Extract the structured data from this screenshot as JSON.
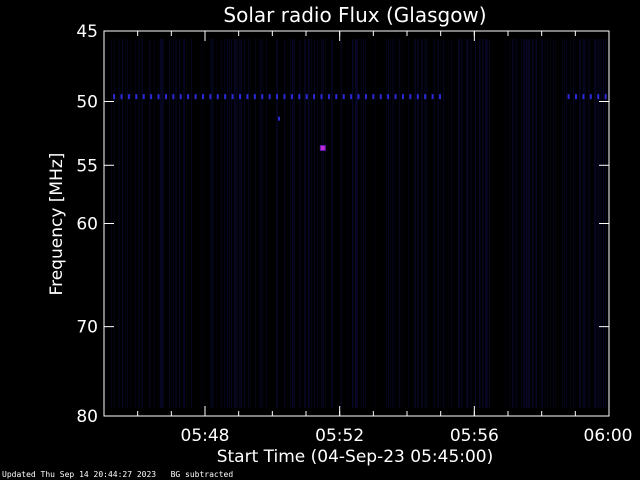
{
  "chart_data": {
    "type": "heatmap",
    "title": "Solar radio Flux (Glasgow)",
    "xlabel": "Start Time (04-Sep-23 05:45:00)",
    "ylabel": "Frequency [MHz]",
    "x_range": [
      "05:45",
      "06:00"
    ],
    "y_range": [
      45,
      80
    ],
    "y_scale": "log",
    "y_inverted": true,
    "x_ticks": [
      "05:48",
      "05:52",
      "05:56",
      "06:00"
    ],
    "x_tick_minutes": [
      3,
      7,
      11,
      15
    ],
    "y_ticks": [
      45,
      50,
      55,
      60,
      70,
      80
    ],
    "interference_band": {
      "frequency_mhz": 49.6,
      "segments_min": [
        [
          0.3,
          10.1
        ],
        [
          13.8,
          15.0
        ]
      ]
    },
    "features": [
      {
        "time_min": 6.5,
        "frequency_mhz": 53.6,
        "kind": "burst"
      },
      {
        "time_min": 5.2,
        "frequency_mhz": 51.3,
        "kind": "spike"
      }
    ],
    "colors": {
      "background": "#000000",
      "band": "#2a2ad8",
      "burst": "#c02ad0",
      "stripe": "#0b0b3c"
    }
  },
  "footer": {
    "updated": "Updated Thu Sep 14 20:44:27 2023",
    "note": "BG subtracted"
  }
}
